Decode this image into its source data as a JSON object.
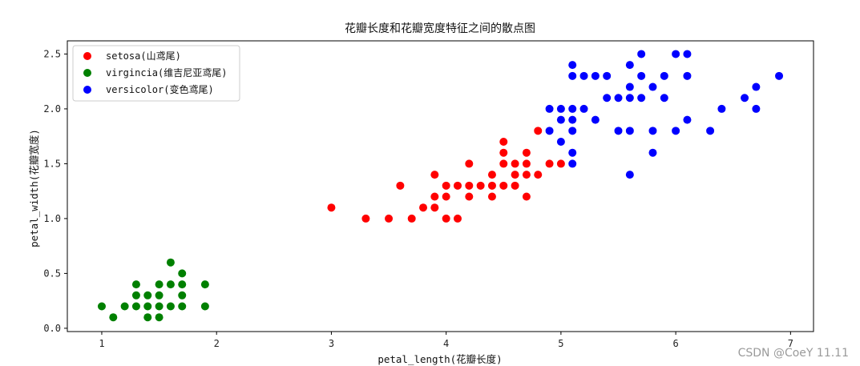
{
  "chart_data": {
    "type": "scatter",
    "title": "花瓣长度和花瓣宽度特征之间的散点图",
    "xlabel": "petal_length(花瓣长度)",
    "ylabel": "petal_width(花瓣宽度)",
    "xlim": [
      0.7,
      7.2
    ],
    "ylim": [
      -0.03,
      2.62
    ],
    "xticks": [
      "1",
      "2",
      "3",
      "4",
      "5",
      "6",
      "7"
    ],
    "yticks": [
      "0.0",
      "0.5",
      "1.0",
      "1.5",
      "2.0",
      "2.5"
    ],
    "legend_position": "top-left",
    "series": [
      {
        "name": "setosa(山鸢尾)",
        "color": "#ff0000",
        "points": [
          [
            3.0,
            1.1
          ],
          [
            3.3,
            1.0
          ],
          [
            3.5,
            1.0
          ],
          [
            3.6,
            1.3
          ],
          [
            3.7,
            1.0
          ],
          [
            3.8,
            1.1
          ],
          [
            3.9,
            1.1
          ],
          [
            3.9,
            1.2
          ],
          [
            3.9,
            1.4
          ],
          [
            4.0,
            1.0
          ],
          [
            4.0,
            1.2
          ],
          [
            4.0,
            1.3
          ],
          [
            4.1,
            1.0
          ],
          [
            4.1,
            1.3
          ],
          [
            4.2,
            1.2
          ],
          [
            4.2,
            1.3
          ],
          [
            4.2,
            1.5
          ],
          [
            4.3,
            1.3
          ],
          [
            4.4,
            1.2
          ],
          [
            4.4,
            1.3
          ],
          [
            4.4,
            1.4
          ],
          [
            4.5,
            1.3
          ],
          [
            4.5,
            1.5
          ],
          [
            4.5,
            1.6
          ],
          [
            4.5,
            1.7
          ],
          [
            4.6,
            1.3
          ],
          [
            4.6,
            1.4
          ],
          [
            4.6,
            1.5
          ],
          [
            4.7,
            1.2
          ],
          [
            4.7,
            1.4
          ],
          [
            4.7,
            1.5
          ],
          [
            4.7,
            1.6
          ],
          [
            4.8,
            1.4
          ],
          [
            4.8,
            1.8
          ],
          [
            4.9,
            1.5
          ],
          [
            5.0,
            1.5
          ]
        ]
      },
      {
        "name": "virgincia(维吉尼亚鸢尾)",
        "color": "#008000",
        "points": [
          [
            1.0,
            0.2
          ],
          [
            1.1,
            0.1
          ],
          [
            1.2,
            0.2
          ],
          [
            1.3,
            0.2
          ],
          [
            1.3,
            0.3
          ],
          [
            1.3,
            0.4
          ],
          [
            1.4,
            0.1
          ],
          [
            1.4,
            0.2
          ],
          [
            1.4,
            0.3
          ],
          [
            1.5,
            0.1
          ],
          [
            1.5,
            0.2
          ],
          [
            1.5,
            0.3
          ],
          [
            1.5,
            0.4
          ],
          [
            1.6,
            0.2
          ],
          [
            1.6,
            0.4
          ],
          [
            1.6,
            0.6
          ],
          [
            1.7,
            0.2
          ],
          [
            1.7,
            0.3
          ],
          [
            1.7,
            0.4
          ],
          [
            1.7,
            0.5
          ],
          [
            1.9,
            0.2
          ],
          [
            1.9,
            0.4
          ]
        ]
      },
      {
        "name": "versicolor(变色鸢尾)",
        "color": "#0000ff",
        "points": [
          [
            4.9,
            1.8
          ],
          [
            4.9,
            2.0
          ],
          [
            5.0,
            1.7
          ],
          [
            5.0,
            1.9
          ],
          [
            5.0,
            2.0
          ],
          [
            5.1,
            1.5
          ],
          [
            5.1,
            1.6
          ],
          [
            5.1,
            1.8
          ],
          [
            5.1,
            1.9
          ],
          [
            5.1,
            2.0
          ],
          [
            5.1,
            2.3
          ],
          [
            5.1,
            2.4
          ],
          [
            5.2,
            2.0
          ],
          [
            5.2,
            2.3
          ],
          [
            5.3,
            1.9
          ],
          [
            5.3,
            2.3
          ],
          [
            5.4,
            2.1
          ],
          [
            5.4,
            2.3
          ],
          [
            5.5,
            1.8
          ],
          [
            5.5,
            2.1
          ],
          [
            5.6,
            1.4
          ],
          [
            5.6,
            1.8
          ],
          [
            5.6,
            2.1
          ],
          [
            5.6,
            2.2
          ],
          [
            5.6,
            2.4
          ],
          [
            5.7,
            2.1
          ],
          [
            5.7,
            2.3
          ],
          [
            5.7,
            2.5
          ],
          [
            5.8,
            1.6
          ],
          [
            5.8,
            1.8
          ],
          [
            5.8,
            2.2
          ],
          [
            5.9,
            2.1
          ],
          [
            5.9,
            2.3
          ],
          [
            6.0,
            1.8
          ],
          [
            6.0,
            2.5
          ],
          [
            6.1,
            1.9
          ],
          [
            6.1,
            2.3
          ],
          [
            6.1,
            2.5
          ],
          [
            6.3,
            1.8
          ],
          [
            6.4,
            2.0
          ],
          [
            6.6,
            2.1
          ],
          [
            6.7,
            2.0
          ],
          [
            6.7,
            2.2
          ],
          [
            6.9,
            2.3
          ]
        ]
      }
    ]
  },
  "watermark": "CSDN @CoeY 11.11"
}
